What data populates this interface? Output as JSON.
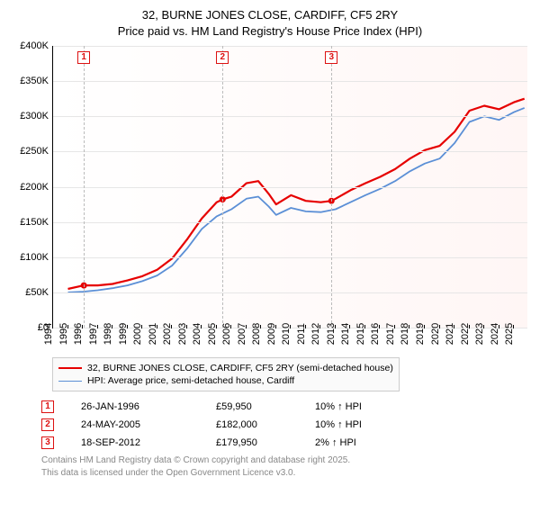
{
  "title": {
    "line1": "32, BURNE JONES CLOSE, CARDIFF, CF5 2RY",
    "line2": "Price paid vs. HM Land Registry's House Price Index (HPI)",
    "fontsize": 13
  },
  "chart": {
    "type": "line",
    "background_gradient": [
      "#ffffff",
      "#fff6f5"
    ],
    "grid_color": "#e6e6e6",
    "yaxis": {
      "min": 0,
      "max": 400000,
      "tick_step": 50000,
      "ticks": [
        "£0",
        "£50K",
        "£100K",
        "£150K",
        "£200K",
        "£250K",
        "£300K",
        "£350K",
        "£400K"
      ],
      "fontsize": 11
    },
    "xaxis": {
      "min": 1994,
      "max": 2025.9,
      "ticks": [
        1994,
        1995,
        1996,
        1997,
        1998,
        1999,
        2000,
        2001,
        2002,
        2003,
        2004,
        2005,
        2006,
        2007,
        2008,
        2009,
        2010,
        2011,
        2012,
        2013,
        2014,
        2015,
        2016,
        2017,
        2018,
        2019,
        2020,
        2021,
        2022,
        2023,
        2024,
        2025
      ],
      "fontsize": 11,
      "rotation": -90
    },
    "series": [
      {
        "name": "price_paid",
        "label": "32, BURNE JONES CLOSE, CARDIFF, CF5 2RY (semi-detached house)",
        "color": "#e60000",
        "line_width": 2.2,
        "data": [
          [
            1995.0,
            55000
          ],
          [
            1996.07,
            59950
          ],
          [
            1997.0,
            60000
          ],
          [
            1998.0,
            62000
          ],
          [
            1999.0,
            67000
          ],
          [
            2000.0,
            73000
          ],
          [
            2001.0,
            82000
          ],
          [
            2002.0,
            98000
          ],
          [
            2003.0,
            125000
          ],
          [
            2004.0,
            155000
          ],
          [
            2005.0,
            178000
          ],
          [
            2005.4,
            182000
          ],
          [
            2006.0,
            186000
          ],
          [
            2007.0,
            205000
          ],
          [
            2007.8,
            208000
          ],
          [
            2008.5,
            190000
          ],
          [
            2009.0,
            175000
          ],
          [
            2010.0,
            188000
          ],
          [
            2011.0,
            180000
          ],
          [
            2012.0,
            178000
          ],
          [
            2012.72,
            179950
          ],
          [
            2013.0,
            183000
          ],
          [
            2014.0,
            195000
          ],
          [
            2015.0,
            205000
          ],
          [
            2016.0,
            214000
          ],
          [
            2017.0,
            225000
          ],
          [
            2018.0,
            240000
          ],
          [
            2019.0,
            252000
          ],
          [
            2020.0,
            258000
          ],
          [
            2021.0,
            278000
          ],
          [
            2022.0,
            308000
          ],
          [
            2023.0,
            315000
          ],
          [
            2024.0,
            310000
          ],
          [
            2025.0,
            320000
          ],
          [
            2025.7,
            325000
          ]
        ]
      },
      {
        "name": "hpi",
        "label": "HPI: Average price, semi-detached house, Cardiff",
        "color": "#5b8fd6",
        "line_width": 1.8,
        "data": [
          [
            1995.0,
            50000
          ],
          [
            1996.0,
            51000
          ],
          [
            1997.0,
            53000
          ],
          [
            1998.0,
            56000
          ],
          [
            1999.0,
            60000
          ],
          [
            2000.0,
            66000
          ],
          [
            2001.0,
            74000
          ],
          [
            2002.0,
            88000
          ],
          [
            2003.0,
            112000
          ],
          [
            2004.0,
            140000
          ],
          [
            2005.0,
            158000
          ],
          [
            2006.0,
            168000
          ],
          [
            2007.0,
            183000
          ],
          [
            2007.8,
            186000
          ],
          [
            2008.5,
            172000
          ],
          [
            2009.0,
            160000
          ],
          [
            2010.0,
            170000
          ],
          [
            2011.0,
            165000
          ],
          [
            2012.0,
            164000
          ],
          [
            2013.0,
            168000
          ],
          [
            2014.0,
            178000
          ],
          [
            2015.0,
            188000
          ],
          [
            2016.0,
            197000
          ],
          [
            2017.0,
            208000
          ],
          [
            2018.0,
            222000
          ],
          [
            2019.0,
            233000
          ],
          [
            2020.0,
            240000
          ],
          [
            2021.0,
            262000
          ],
          [
            2022.0,
            292000
          ],
          [
            2023.0,
            300000
          ],
          [
            2024.0,
            295000
          ],
          [
            2025.0,
            306000
          ],
          [
            2025.7,
            312000
          ]
        ]
      }
    ],
    "sale_markers": [
      {
        "n": "1",
        "year": 1996.07,
        "price": 59950
      },
      {
        "n": "2",
        "year": 2005.4,
        "price": 182000
      },
      {
        "n": "3",
        "year": 2012.72,
        "price": 179950
      }
    ],
    "marker_box": {
      "border_color": "#d11",
      "text_color": "#d11",
      "size": 14
    },
    "sale_dot": {
      "color": "#e60000",
      "radius": 3.5
    }
  },
  "legend": {
    "rows": [
      {
        "color": "#e60000",
        "width": 2.2,
        "label": "32, BURNE JONES CLOSE, CARDIFF, CF5 2RY (semi-detached house)"
      },
      {
        "color": "#5b8fd6",
        "width": 1.8,
        "label": "HPI: Average price, semi-detached house, Cardiff"
      }
    ],
    "fontsize": 10.5
  },
  "sales_table": {
    "rows": [
      {
        "n": "1",
        "date": "26-JAN-1996",
        "price": "£59,950",
        "hpi": "10% ↑ HPI"
      },
      {
        "n": "2",
        "date": "24-MAY-2005",
        "price": "£182,000",
        "hpi": "10% ↑ HPI"
      },
      {
        "n": "3",
        "date": "18-SEP-2012",
        "price": "£179,950",
        "hpi": "2% ↑ HPI"
      }
    ],
    "fontsize": 11
  },
  "footer": {
    "line1": "Contains HM Land Registry data © Crown copyright and database right 2025.",
    "line2": "This data is licensed under the Open Government Licence v3.0.",
    "color": "#888888",
    "fontsize": 10
  }
}
